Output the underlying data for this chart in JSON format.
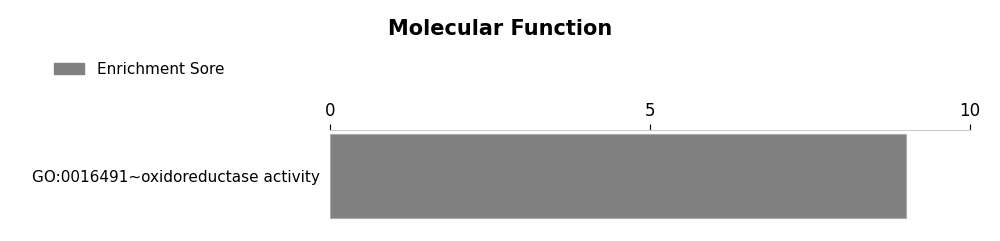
{
  "title": "Molecular Function",
  "title_fontsize": 15,
  "title_fontweight": "bold",
  "categories": [
    "GO:0016491~oxidoreductase activity"
  ],
  "values": [
    9.0
  ],
  "bar_color": "#808080",
  "xlim": [
    0,
    10
  ],
  "xticks": [
    0,
    5,
    10
  ],
  "legend_label": "Enrichment Sore",
  "legend_color": "#808080",
  "background_color": "#ffffff",
  "figsize": [
    10.0,
    2.41
  ],
  "dpi": 100,
  "bar_height": 0.35,
  "ylabel_fontsize": 11,
  "xlabel_fontsize": 12,
  "legend_fontsize": 11
}
